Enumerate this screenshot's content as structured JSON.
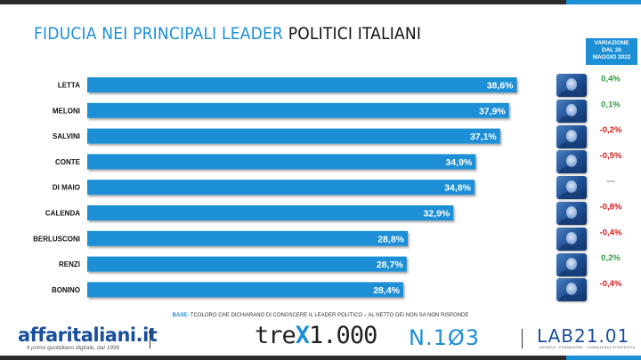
{
  "title": {
    "part1": "FIDUCIA NEI PRINCIPALI LEADER",
    "part2": "POLITICI ITALIANI"
  },
  "variation_header": {
    "line1": "VARIAZIONE",
    "line2": "DAL 26",
    "line3": "MAGGIO 2022"
  },
  "colors": {
    "bar": "#1c8fd6",
    "positive": "#2e9e3e",
    "negative": "#d01c1c",
    "neutral": "#777777",
    "accent": "#1c8fd6"
  },
  "chart_data": {
    "type": "bar",
    "orientation": "horizontal",
    "title": "FIDUCIA NEI PRINCIPALI LEADER POLITICI ITALIANI",
    "categories": [
      "LETTA",
      "MELONI",
      "SALVINI",
      "CONTE",
      "DI MAIO",
      "CALENDA",
      "BERLUSCONI",
      "RENZI",
      "BONINO"
    ],
    "values": [
      38.6,
      37.9,
      37.1,
      34.9,
      34.8,
      32.9,
      28.8,
      28.7,
      28.4
    ],
    "value_labels": [
      "38,6%",
      "37,9%",
      "37,1%",
      "34,9%",
      "34,8%",
      "32,9%",
      "28,8%",
      "28,7%",
      "28,4%"
    ],
    "changes": [
      "0,4%",
      "0,1%",
      "-0,2%",
      "-0,5%",
      "---",
      "-0,8%",
      "-0,4%",
      "0,2%",
      "-0,4%"
    ],
    "change_direction": [
      "positive",
      "positive",
      "negative",
      "negative",
      "neutral",
      "negative",
      "negative",
      "positive",
      "negative"
    ],
    "xlim": [
      0,
      40
    ],
    "grid": false,
    "legend": "none"
  },
  "base_note": {
    "label": "BASE:",
    "text": "TCOLORO CHE DICHIARANO DI CONOSCERE IL LEADER POLITICO – AL NETTO DEI NON SA NON RISPONDE"
  },
  "footer": {
    "affaritaliani": "affaritaliani.it",
    "affaritaliani_sub": "Il primo quotidiano digitale, dal 1996",
    "trex_pre": "tre",
    "trex_x": "X",
    "trex_post": "1.000",
    "n103": "N.1Ø3",
    "lab": "LAB21.01",
    "lab_sub": "RICERCA · FORMAZIONE · CONSULENZA STRATEGICA"
  }
}
